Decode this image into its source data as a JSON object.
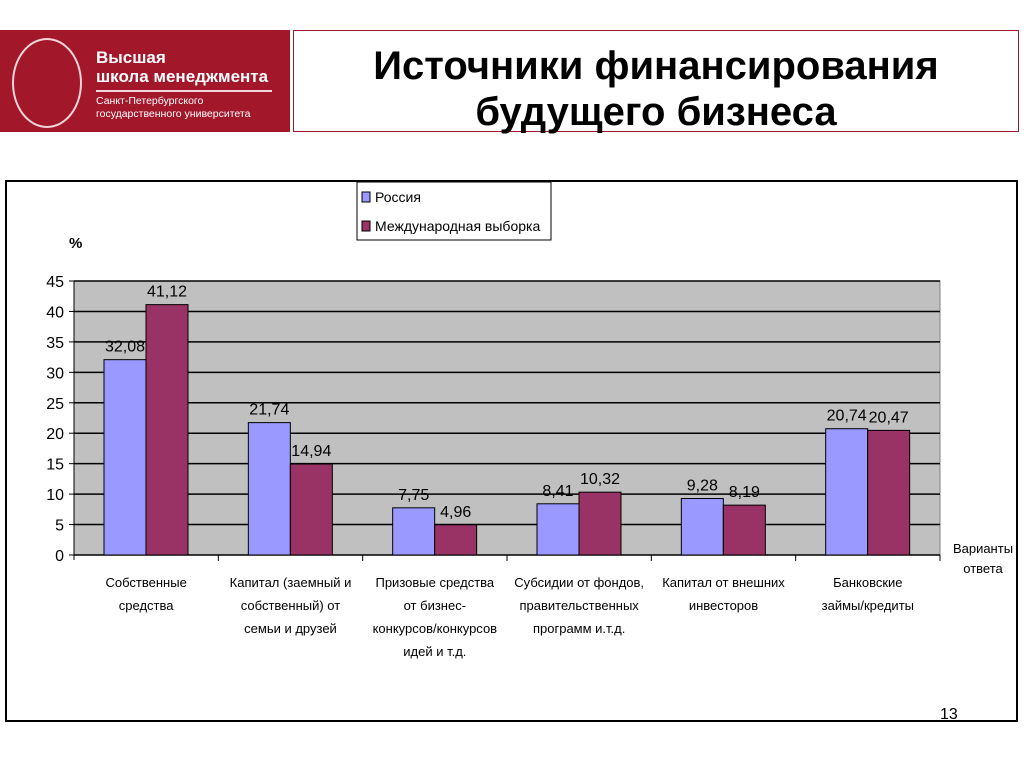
{
  "logo": {
    "line1": "Высшая",
    "line2": "школа менеджмента",
    "line3": "Санкт-Петербургского",
    "line4": "государственного университета"
  },
  "title_line1": "Источники финансирования",
  "title_line2": "будущего бизнеса",
  "page_number": "13",
  "chart_data": {
    "type": "bar",
    "ylabel": "%",
    "xlabel": "Варианты ответа",
    "xlabel_lines": [
      "Варианты",
      "ответа"
    ],
    "ylim": [
      0,
      45
    ],
    "yticks": [
      0,
      5,
      10,
      15,
      20,
      25,
      30,
      35,
      40,
      45
    ],
    "grid": true,
    "legend_position": "top",
    "categories": [
      [
        "Собственные",
        "средства"
      ],
      [
        "Капитал (заемный и",
        "собственный) от",
        "семьи и друзей"
      ],
      [
        "Призовые средства",
        "от бизнес-",
        "конкурсов/конкурсов",
        "идей и т.д."
      ],
      [
        "Субсидии от фондов,",
        "правительственных",
        "программ и.т.д."
      ],
      [
        "Капитал от внешних",
        "инвесторов"
      ],
      [
        "Банковские",
        "займы/кредиты"
      ]
    ],
    "series": [
      {
        "name": "Россия",
        "color": "#9999ff",
        "values": [
          32.08,
          21.74,
          7.75,
          8.41,
          9.28,
          20.74
        ],
        "labels": [
          "32,08",
          "21,74",
          "7,75",
          "8,41",
          "9,28",
          "20,74"
        ]
      },
      {
        "name": "Международная выборка",
        "color": "#993366",
        "values": [
          41.12,
          14.94,
          4.96,
          10.32,
          8.19,
          20.47
        ],
        "labels": [
          "41,12",
          "14,94",
          "4,96",
          "10,32",
          "8,19",
          "20,47"
        ]
      }
    ]
  }
}
